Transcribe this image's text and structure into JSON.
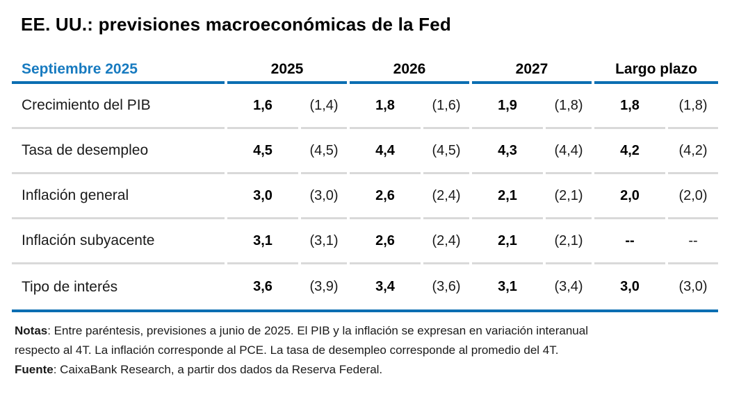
{
  "title": "EE. UU.: previsiones macroeconómicas de la Fed",
  "colors": {
    "accent_text_blue": "#187bc0",
    "rule_blue": "#0b6eb2",
    "separator_gray": "#d9d9d9"
  },
  "table": {
    "period_label": "Septiembre 2025",
    "column_groups": [
      "2025",
      "2026",
      "2027",
      "Largo plazo"
    ],
    "rows": [
      {
        "label": "Crecimiento del PIB",
        "cells": [
          {
            "main": "1,6",
            "prev": "(1,4)"
          },
          {
            "main": "1,8",
            "prev": "(1,6)"
          },
          {
            "main": "1,9",
            "prev": "(1,8)"
          },
          {
            "main": "1,8",
            "prev": "(1,8)"
          }
        ]
      },
      {
        "label": "Tasa de desempleo",
        "cells": [
          {
            "main": "4,5",
            "prev": "(4,5)"
          },
          {
            "main": "4,4",
            "prev": "(4,5)"
          },
          {
            "main": "4,3",
            "prev": "(4,4)"
          },
          {
            "main": "4,2",
            "prev": "(4,2)"
          }
        ]
      },
      {
        "label": "Inflación general",
        "cells": [
          {
            "main": "3,0",
            "prev": "(3,0)"
          },
          {
            "main": "2,6",
            "prev": "(2,4)"
          },
          {
            "main": "2,1",
            "prev": "(2,1)"
          },
          {
            "main": "2,0",
            "prev": "(2,0)"
          }
        ]
      },
      {
        "label": "Inflación subyacente",
        "cells": [
          {
            "main": "3,1",
            "prev": "(3,1)"
          },
          {
            "main": "2,6",
            "prev": "(2,4)"
          },
          {
            "main": "2,1",
            "prev": "(2,1)"
          },
          {
            "main": "--",
            "prev": "--"
          }
        ]
      },
      {
        "label": "Tipo de interés",
        "cells": [
          {
            "main": "3,6",
            "prev": "(3,9)"
          },
          {
            "main": "3,4",
            "prev": "(3,6)"
          },
          {
            "main": "3,1",
            "prev": "(3,4)"
          },
          {
            "main": "3,0",
            "prev": "(3,0)"
          }
        ]
      }
    ]
  },
  "notes": {
    "lines": [
      {
        "bold": "Notas",
        "rest": ": Entre paréntesis, previsiones a junio de 2025. El PIB y la inflación se expresan en variación interanual"
      },
      {
        "bold": "",
        "rest": "respecto al 4T. La inflación corresponde al PCE. La tasa de desempleo corresponde al promedio del 4T."
      },
      {
        "bold": "Fuente",
        "rest": ": CaixaBank Research, a partir dos dados da Reserva Federal."
      }
    ]
  },
  "chart_data": {
    "type": "table",
    "title": "EE. UU.: previsiones macroeconómicas de la Fed",
    "period": "Septiembre 2025",
    "columns": [
      "2025",
      "2026",
      "2027",
      "Largo plazo"
    ],
    "series": [
      {
        "name": "Crecimiento del PIB",
        "current": [
          1.6,
          1.8,
          1.9,
          1.8
        ],
        "previous": [
          1.4,
          1.6,
          1.8,
          1.8
        ]
      },
      {
        "name": "Tasa de desempleo",
        "current": [
          4.5,
          4.4,
          4.3,
          4.2
        ],
        "previous": [
          4.5,
          4.5,
          4.4,
          4.2
        ]
      },
      {
        "name": "Inflación general",
        "current": [
          3.0,
          2.6,
          2.1,
          2.0
        ],
        "previous": [
          3.0,
          2.4,
          2.1,
          2.0
        ]
      },
      {
        "name": "Inflación subyacente",
        "current": [
          3.1,
          2.6,
          2.1,
          null
        ],
        "previous": [
          3.1,
          2.4,
          2.1,
          null
        ]
      },
      {
        "name": "Tipo de interés",
        "current": [
          3.6,
          3.4,
          3.1,
          3.0
        ],
        "previous": [
          3.9,
          3.6,
          3.4,
          3.0
        ]
      }
    ]
  }
}
